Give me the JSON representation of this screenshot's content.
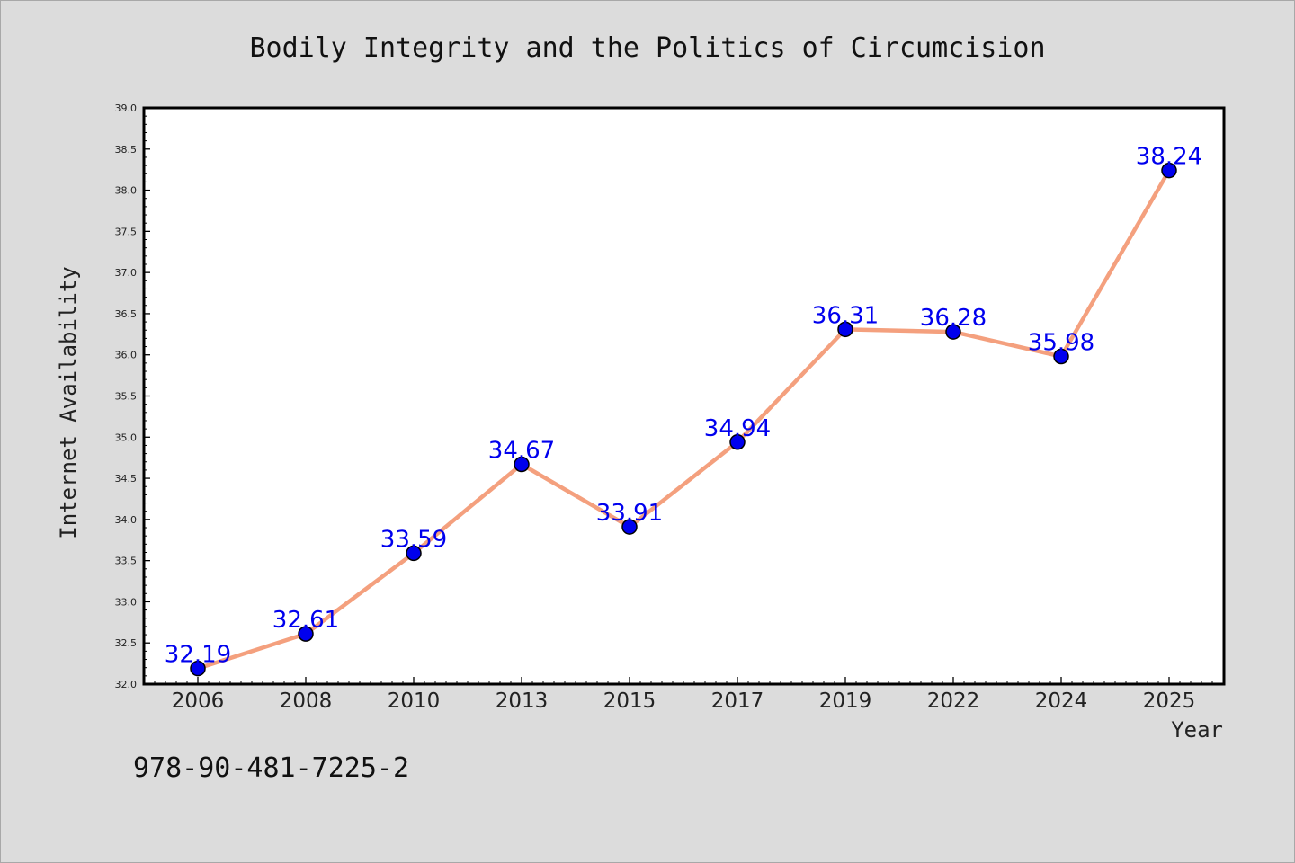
{
  "chart_data": {
    "type": "line",
    "title": "Bodily Integrity and the Politics of Circumcision",
    "xlabel": "Year",
    "ylabel": "Internet Availability",
    "categories": [
      "2006",
      "2008",
      "2010",
      "2013",
      "2015",
      "2017",
      "2019",
      "2022",
      "2024",
      "2025"
    ],
    "series": [
      {
        "values": [
          32.19,
          32.61,
          33.59,
          34.67,
          33.91,
          34.94,
          36.31,
          36.28,
          35.98,
          38.24
        ]
      }
    ],
    "ylim": [
      32.0,
      39.0
    ],
    "yticks": [
      "32.0",
      "32.5",
      "33.0",
      "33.5",
      "34.0",
      "34.5",
      "35.0",
      "35.5",
      "36.0",
      "36.5",
      "37.0",
      "37.5",
      "38.0",
      "38.5",
      "39.0"
    ],
    "data_labels": [
      "32.19",
      "32.61",
      "33.59",
      "34.67",
      "33.91",
      "34.94",
      "36.31",
      "36.28",
      "35.98",
      "38.24"
    ],
    "grid": false,
    "legend": "none",
    "colors": {
      "line": "#f4a07e",
      "marker": "#0000ee",
      "label": "#0000ee",
      "background": "#dcdcdc",
      "plot_background": "#ffffff"
    }
  },
  "footer": {
    "isbn": "978-90-481-7225-2"
  }
}
